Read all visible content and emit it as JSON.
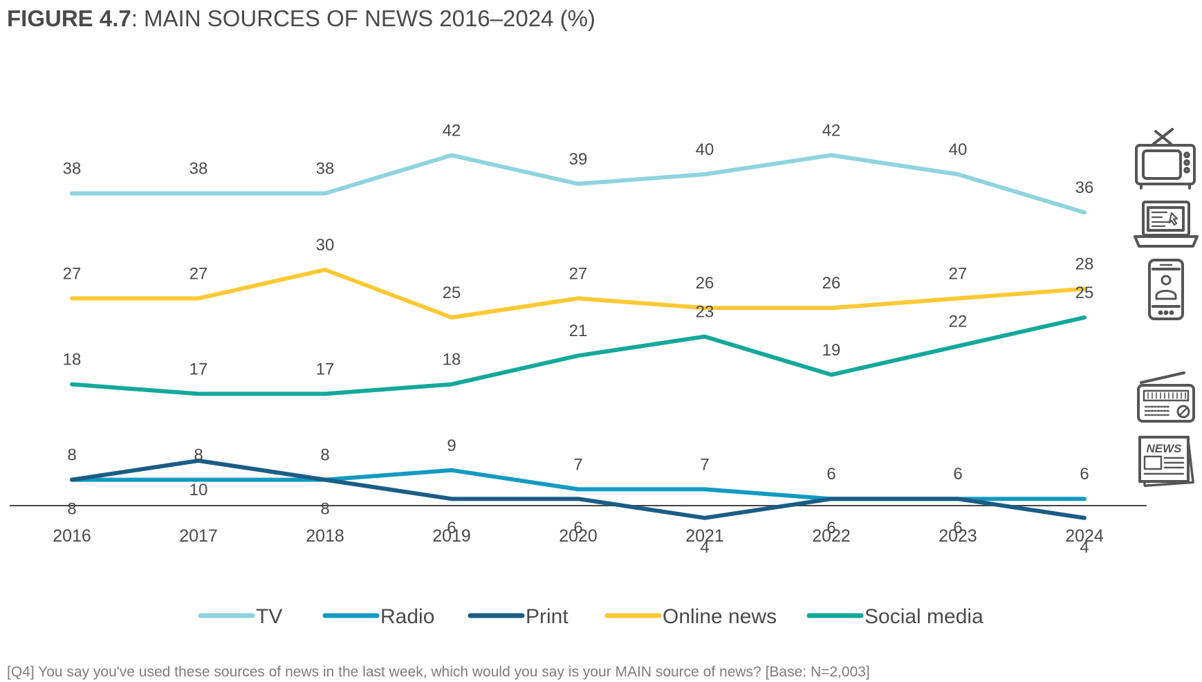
{
  "title_prefix": "FIGURE 4.7",
  "title_rest": ": MAIN SOURCES OF NEWS 2016–2024 (%)",
  "footnote": "[Q4] You say you've used these sources of news in the last week, which would you say is your MAIN source of news? [Base: N=2,003]",
  "icons": [
    "tv-icon",
    "laptop-icon",
    "smartphone-icon",
    "radio-icon",
    "newspaper-icon"
  ],
  "newspaper_icon_text": "NEWS",
  "chart_data": {
    "type": "line",
    "x": [
      "2016",
      "2017",
      "2018",
      "2019",
      "2020",
      "2021",
      "2022",
      "2023",
      "2024"
    ],
    "ylim": [
      0,
      45
    ],
    "grid": false,
    "legend_position": "bottom",
    "series": [
      {
        "name": "TV",
        "color": "#8fd3e0",
        "values": [
          38,
          38,
          38,
          42,
          39,
          40,
          42,
          40,
          36
        ]
      },
      {
        "name": "Radio",
        "color": "#139ac2",
        "values": [
          8,
          8,
          8,
          9,
          7,
          7,
          6,
          6,
          6
        ]
      },
      {
        "name": "Print",
        "color": "#1a5d84",
        "values": [
          8,
          10,
          8,
          6,
          6,
          4,
          6,
          6,
          4
        ]
      },
      {
        "name": "Online news",
        "color": "#fcc935",
        "values": [
          27,
          27,
          30,
          25,
          27,
          26,
          26,
          27,
          28
        ]
      },
      {
        "name": "Social media",
        "color": "#14a89b",
        "values": [
          18,
          17,
          17,
          18,
          21,
          23,
          19,
          22,
          25
        ]
      }
    ]
  }
}
